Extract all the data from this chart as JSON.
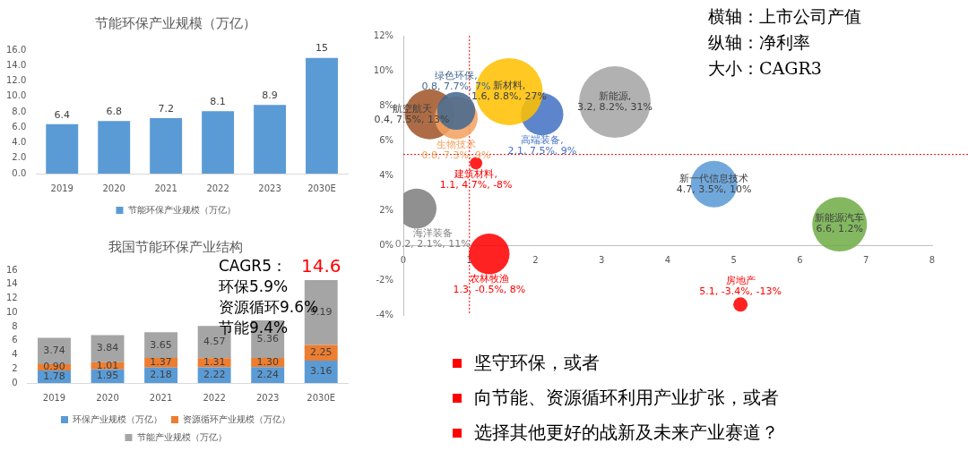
{
  "chart_data": [
    {
      "type": "bar",
      "title": "节能环保产业规模（万亿）",
      "categories": [
        "2019",
        "2020",
        "2021",
        "2022",
        "2023",
        "2030E"
      ],
      "series": [
        {
          "name": "节能环保产业规模（万亿）",
          "color": "#5b9bd5",
          "values": [
            6.4,
            6.8,
            7.2,
            8.1,
            8.9,
            15
          ]
        }
      ],
      "ylim": [
        0,
        16
      ],
      "yticks": [
        {
          "value": 0,
          "label": "0.0"
        },
        {
          "value": 2,
          "label": "2.0"
        },
        {
          "value": 4,
          "label": "4.0"
        },
        {
          "value": 6,
          "label": "6.0"
        },
        {
          "value": 8,
          "label": "8.0"
        },
        {
          "value": 10,
          "label": "10.0"
        },
        {
          "value": 12,
          "label": "12.0"
        },
        {
          "value": 14,
          "label": "14.0"
        },
        {
          "value": 16,
          "label": "16.0"
        }
      ],
      "data_labels": true,
      "legend": "bottom"
    },
    {
      "type": "bar",
      "title": "我国节能环保产业结构",
      "categories": [
        "2019",
        "2020",
        "2021",
        "2022",
        "2023",
        "2030E"
      ],
      "stacked": true,
      "series": [
        {
          "name": "环保产业规模（万亿）",
          "color": "#5b9bd5",
          "values": [
            1.78,
            1.95,
            2.18,
            2.22,
            2.24,
            3.16
          ],
          "value_labels": [
            "1.78",
            "1.95",
            "2.18",
            "2.22",
            "2.24",
            "3.16"
          ]
        },
        {
          "name": "资源循环产业规模（万亿）",
          "color": "#ed7d31",
          "values": [
            0.9,
            1.01,
            1.37,
            1.31,
            1.3,
            2.25
          ],
          "value_labels": [
            "0.90",
            "1.01",
            "1.37",
            "1.31",
            "1.30",
            "2.25"
          ]
        },
        {
          "name": "节能产业规模（万亿）",
          "color": "#a5a5a5",
          "values": [
            3.74,
            3.84,
            3.65,
            4.57,
            5.36,
            9.19
          ],
          "value_labels": [
            "3.74",
            "3.84",
            "3.65",
            "4.57",
            "5.36",
            "9.19"
          ]
        }
      ],
      "totals": [
        null,
        null,
        null,
        null,
        null,
        "14.6"
      ],
      "ylim": [
        0,
        16
      ],
      "yticks": [
        0,
        2,
        4,
        6,
        8,
        10,
        12,
        14,
        16
      ],
      "legend": "bottom",
      "annotations": [
        "CAGR5：",
        "环保5.9%",
        "资源循环9.6%",
        "节能9.4%"
      ]
    },
    {
      "type": "bubble",
      "legend": false,
      "series": [
        {
          "name": "绿色环保,",
          "color": "#44698f",
          "x": [
            0.8
          ],
          "values": [
            7.7
          ],
          "sizes": [
            0.28
          ],
          "value_labels": [
            "0.8, 7.7%, 7%"
          ]
        },
        {
          "name": "生物技术",
          "color": "#f4a261",
          "x": [
            0.8
          ],
          "values": [
            7.3
          ],
          "sizes": [
            0.36
          ],
          "value_labels": [
            "0.8, 7.3%, 9%"
          ]
        },
        {
          "name": "航空航天",
          "color": "#a0552a",
          "x": [
            0.4
          ],
          "values": [
            7.5
          ],
          "sizes": [
            0.49
          ],
          "value_labels": [
            "0.4, 7.5%, 13%"
          ]
        },
        {
          "name": "新材料,",
          "color": "#ffc000",
          "x": [
            1.6
          ],
          "values": [
            8.8
          ],
          "sizes": [
            0.88
          ],
          "value_labels": [
            "1.6, 8.8%, 27%"
          ]
        },
        {
          "name": "高端装备,",
          "color": "#4472c4",
          "x": [
            2.1
          ],
          "values": [
            7.5
          ],
          "sizes": [
            0.35
          ],
          "value_labels": [
            "2.1, 7.5%, 9%"
          ]
        },
        {
          "name": "新能源,",
          "color": "#a5a5a5",
          "x": [
            3.2
          ],
          "values": [
            8.2
          ],
          "sizes": [
            1
          ],
          "value_labels": [
            "3.2, 8.2%, 31%"
          ]
        },
        {
          "name": "建筑材料,",
          "color": "#ff0000",
          "x": [
            1.1
          ],
          "values": [
            4.7
          ],
          "sizes": [
            0.03
          ],
          "value_labels": [
            "1.1, 4.7%, -8%"
          ]
        },
        {
          "name": "新一代信息技术",
          "color": "#5b9bd5",
          "x": [
            4.7
          ],
          "values": [
            3.5
          ],
          "sizes": [
            0.42
          ],
          "value_labels": [
            "4.7, 3.5%, 10%"
          ]
        },
        {
          "name": "新能源汽车",
          "color": "#70ad47",
          "x": [
            6.6
          ],
          "values": [
            1.2
          ],
          "sizes": [
            0.58
          ],
          "value_labels": [
            "6.6, 1.2%"
          ]
        },
        {
          "name": "海洋装备",
          "color": "#7f7f7f",
          "x": [
            0.2
          ],
          "values": [
            2.1
          ],
          "sizes": [
            0.31
          ],
          "value_labels": [
            "0.2, 2.1%, 11%"
          ]
        },
        {
          "name": "农林牧渔",
          "color": "#ff0000",
          "x": [
            1.3
          ],
          "values": [
            -0.5
          ],
          "sizes": [
            0.32
          ],
          "value_labels": [
            "1.3, -0.5%, 8%"
          ]
        },
        {
          "name": "房地产",
          "color": "#ff0000",
          "x": [
            5.1
          ],
          "values": [
            -3.4
          ],
          "sizes": [
            0.04
          ],
          "value_labels": [
            "5.1, -3.4%, -13%"
          ]
        }
      ],
      "xlim": [
        0,
        8
      ],
      "xticks": [
        0,
        1,
        2,
        3,
        4,
        5,
        6,
        7,
        8
      ],
      "ylim": [
        -4,
        12
      ],
      "yticks": [
        {
          "value": -4,
          "label": "-4%"
        },
        {
          "value": -2,
          "label": "-2%"
        },
        {
          "value": 0,
          "label": "0%"
        },
        {
          "value": 2,
          "label": "2%"
        },
        {
          "value": 4,
          "label": "4%"
        },
        {
          "value": 6,
          "label": "6%"
        },
        {
          "value": 8,
          "label": "8%"
        },
        {
          "value": 10,
          "label": "10%"
        },
        {
          "value": 12,
          "label": "12%"
        }
      ],
      "ref_lines": [
        {
          "axis": "x",
          "value": 1,
          "color": "#ff0000",
          "line_style": "dotted"
        },
        {
          "axis": "y",
          "value": 5.2,
          "color": "#ff0000",
          "line_style": "dotted"
        }
      ],
      "annotations": [
        "横轴：上市公司产值",
        "纵轴：净利率",
        "大小：CAGR3",
        "坚守环保，或者",
        "向节能、资源循环利用产业扩张，或者",
        "选择其他更好的战新及未来产业赛道？"
      ]
    }
  ]
}
